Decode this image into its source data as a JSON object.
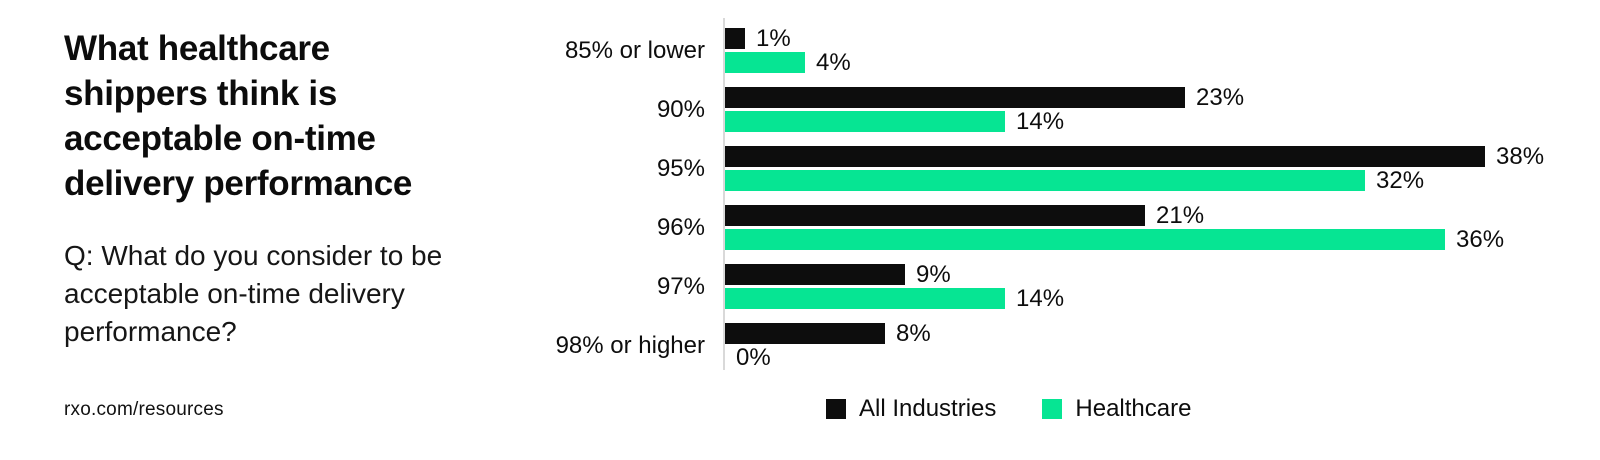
{
  "left_panel": {
    "title": [
      "What healthcare",
      "shippers think is",
      "acceptable on-time",
      "delivery performance"
    ],
    "question": [
      "Q: What do you consider to be",
      "acceptable on-time delivery",
      "performance?"
    ],
    "source": "rxo.com/resources"
  },
  "chart_data": {
    "type": "bar",
    "orientation": "horizontal",
    "title": "What healthcare shippers think is acceptable on-time delivery performance",
    "categories": [
      "85% or lower",
      "90%",
      "95%",
      "96%",
      "97%",
      "98% or higher"
    ],
    "series": [
      {
        "name": "All Industries",
        "color": "#0d0d0d",
        "values": [
          1,
          23,
          38,
          21,
          9,
          8
        ]
      },
      {
        "name": "Healthcare",
        "color": "#06e593",
        "values": [
          4,
          14,
          32,
          36,
          14,
          0
        ]
      }
    ],
    "value_suffix": "%",
    "xlim": [
      0,
      40
    ],
    "grid": false,
    "axis_color": "#d9d9d9",
    "legend_position": "bottom"
  }
}
